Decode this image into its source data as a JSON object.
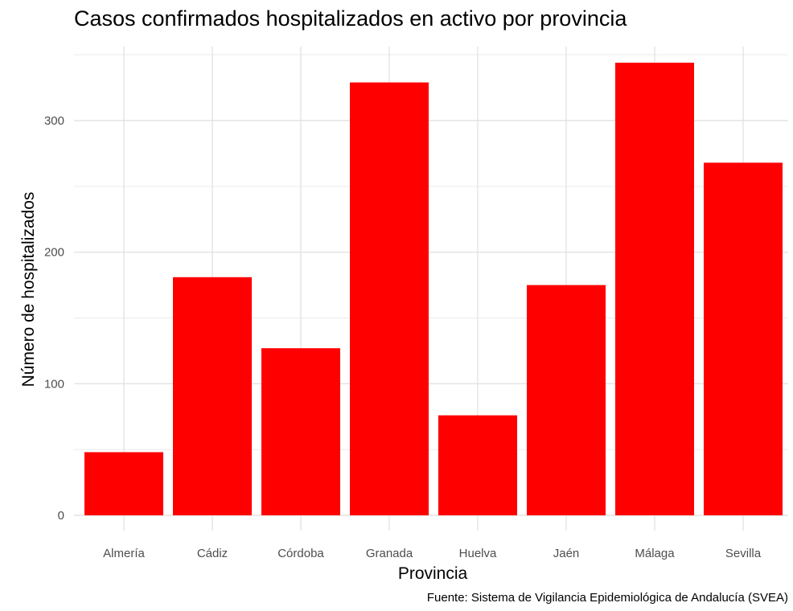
{
  "chart_data": {
    "type": "bar",
    "title": "Casos confirmados hospitalizados en activo por provincia",
    "xlabel": "Provincia",
    "ylabel": "Número de hospitalizados",
    "caption": "Fuente: Sistema de Vigilancia Epidemiológica de Andalucía (SVEA)",
    "categories": [
      "Almería",
      "Cádiz",
      "Córdoba",
      "Granada",
      "Huelva",
      "Jaén",
      "Málaga",
      "Sevilla"
    ],
    "values": [
      48,
      181,
      127,
      329,
      76,
      175,
      344,
      268
    ],
    "ylim": [
      0,
      360
    ],
    "yticks": [
      0,
      100,
      200,
      300
    ],
    "ytick_labels": [
      "0",
      "100",
      "200",
      "300"
    ],
    "grid": true,
    "legend": "none",
    "bar_color": "#ff0000",
    "grid_color": "#ebebeb"
  }
}
